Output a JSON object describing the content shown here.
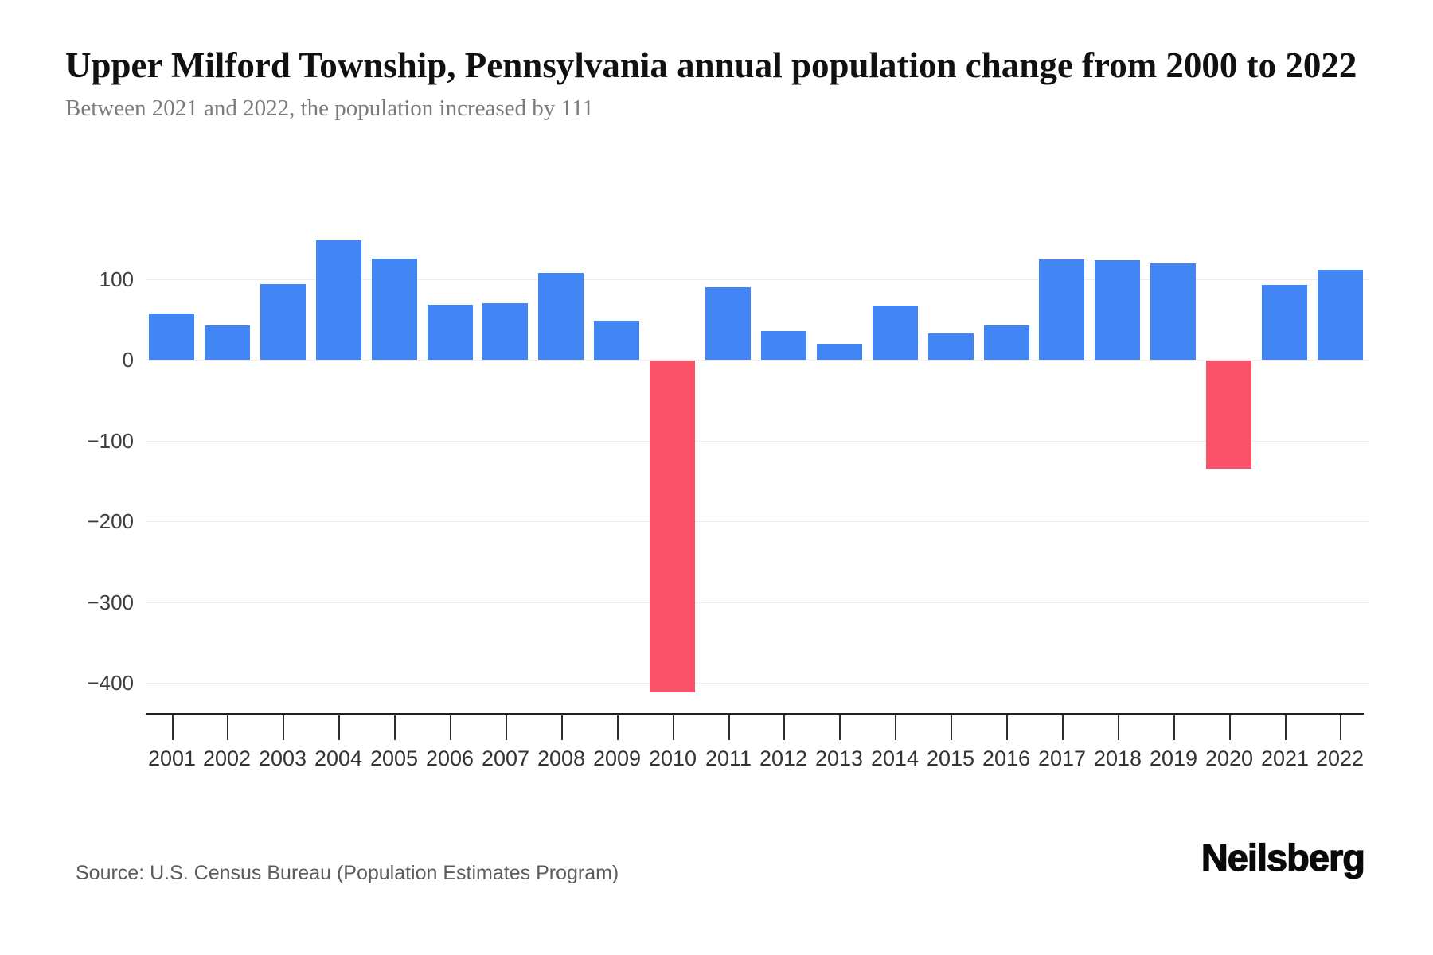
{
  "header": {
    "title": "Upper Milford Township, Pennsylvania annual population change from 2000 to 2022",
    "subtitle": "Between 2021 and 2022, the population increased by 111"
  },
  "footer": {
    "source": "Source: U.S. Census Bureau (Population Estimates Program)",
    "brand": "Neilsberg"
  },
  "chart_data": {
    "type": "bar",
    "title": "Upper Milford Township, Pennsylvania annual population change from 2000 to 2022",
    "subtitle": "Between 2021 and 2022, the population increased by 111",
    "categories": [
      "2001",
      "2002",
      "2003",
      "2004",
      "2005",
      "2006",
      "2007",
      "2008",
      "2009",
      "2010",
      "2011",
      "2012",
      "2013",
      "2014",
      "2015",
      "2016",
      "2017",
      "2018",
      "2019",
      "2020",
      "2021",
      "2022"
    ],
    "values": [
      57,
      42,
      94,
      148,
      125,
      68,
      70,
      107,
      48,
      -411,
      90,
      35,
      20,
      67,
      33,
      42,
      124,
      123,
      119,
      -134,
      93,
      111
    ],
    "xlabel": "",
    "ylabel": "",
    "ylim": [
      -440,
      165
    ],
    "yticks": [
      {
        "value": 100,
        "label": "100"
      },
      {
        "value": 0,
        "label": "0"
      },
      {
        "value": -100,
        "label": "−100"
      },
      {
        "value": -200,
        "label": "−200"
      },
      {
        "value": -300,
        "label": "−300"
      },
      {
        "value": -400,
        "label": "−400"
      }
    ],
    "grid": true,
    "legend": "none",
    "positive_color": "#4285F4",
    "negative_color": "#FA5268",
    "gridline_color": "#ededed"
  }
}
